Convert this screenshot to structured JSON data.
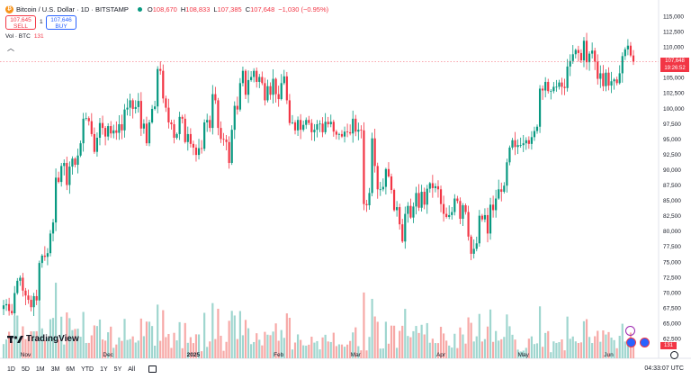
{
  "header": {
    "title": "Bitcoin / U.S. Dollar · 1D · BITSTAMP",
    "ohlc": [
      {
        "k": "O",
        "v": "108,670"
      },
      {
        "k": "H",
        "v": "108,833"
      },
      {
        "k": "L",
        "v": "107,385"
      },
      {
        "k": "C",
        "v": "107,648"
      },
      {
        "k": "",
        "v": "−1,030 (−0.95%)"
      }
    ]
  },
  "trade": {
    "sell_price": "107,645",
    "sell_label": "SELL",
    "spread": "1",
    "buy_price": "107,646",
    "buy_label": "BUY"
  },
  "volume_legend": {
    "label": "Vol · BTC",
    "value": "131"
  },
  "price_tag": {
    "price": "107,648",
    "countdown": "19:26:52"
  },
  "volume_tag": "131",
  "logo": "TradingView",
  "timeframes": [
    "1D",
    "5D",
    "1M",
    "3M",
    "6M",
    "YTD",
    "1Y",
    "5Y",
    "All"
  ],
  "clock": "04:33:07 UTC",
  "colors": {
    "up": "#089981",
    "down": "#f23645",
    "up_vol": "#9fd6cf",
    "down_vol": "#f7a9a7"
  },
  "icons": [
    "bitcoin-icon",
    "live-dot-icon",
    "collapse-chevron-icon",
    "date-range-icon",
    "settings-icon",
    "event-icon",
    "flag-icon"
  ],
  "chart_data": {
    "type": "candlestick",
    "title": "Bitcoin / U.S. Dollar · 1D · BITSTAMP",
    "yticks": [
      "115,000",
      "112,500",
      "110,000",
      "107,500",
      "105,000",
      "102,500",
      "100,000",
      "97,500",
      "95,000",
      "92,500",
      "90,000",
      "87,500",
      "85,000",
      "82,500",
      "80,000",
      "77,500",
      "75,000",
      "72,500",
      "70,000",
      "67,500",
      "65,000",
      "62,500"
    ],
    "ylim": [
      61000,
      116000
    ],
    "xticks": [
      "Nov",
      "Dec",
      "2025",
      "Feb",
      "Mar",
      "Apr",
      "May",
      "Jun"
    ],
    "x_start": "2024-10-24",
    "x_end": "2025-06-19",
    "closes": [
      67900,
      68100,
      67000,
      66600,
      69900,
      71900,
      72400,
      70300,
      69500,
      68800,
      67600,
      69400,
      68700,
      74800,
      76000,
      75800,
      76400,
      79600,
      81400,
      88700,
      88000,
      90600,
      91100,
      87500,
      90500,
      91800,
      90800,
      92300,
      94300,
      98300,
      98400,
      97900,
      95800,
      92900,
      95200,
      97600,
      96800,
      95400,
      97100,
      95900,
      96400,
      96000,
      97400,
      96400,
      99800,
      100100,
      101300,
      99900,
      100200,
      101200,
      96700,
      97500,
      94300,
      97700,
      99900,
      100300,
      106400,
      106100,
      101600,
      100100,
      97700,
      97400,
      95200,
      95800,
      98600,
      98300,
      94500,
      95800,
      94200,
      93600,
      92400,
      93500,
      93400,
      97700,
      98100,
      96800,
      102300,
      101300,
      96800,
      95000,
      94900,
      94500,
      91100,
      96500,
      100400,
      99800,
      104100,
      106100,
      102200,
      104600,
      105100,
      106100,
      104300,
      105100,
      104100,
      101300,
      103600,
      102200,
      104800,
      102300,
      101500,
      104100,
      105200,
      101300,
      97600,
      97700,
      96400,
      98100,
      96500,
      97300,
      98100,
      97600,
      96100,
      96500,
      97400,
      97500,
      96100,
      97800,
      97400,
      97800,
      96200,
      95700,
      95800,
      95400,
      96200,
      96100,
      95900,
      98300,
      96200,
      96500,
      96400,
      84400,
      84200,
      86200,
      95100,
      90600,
      86800,
      86800,
      87200,
      90100,
      88900,
      86700,
      83400,
      83900,
      81100,
      78300,
      82800,
      84100,
      82200,
      84000,
      86200,
      83800,
      86400,
      84300,
      86900,
      87800,
      87000,
      87300,
      86800,
      84400,
      82800,
      82300,
      82600,
      83100,
      85300,
      84900,
      82000,
      84200,
      83100,
      79100,
      76300,
      77100,
      78000,
      82500,
      81900,
      82600,
      79600,
      84300,
      83400,
      85300,
      86800,
      86400,
      87400,
      91200,
      93600,
      94800,
      93700,
      94000,
      94000,
      94300,
      94800,
      94200,
      95300,
      96300,
      97000,
      103200,
      102900,
      104300,
      102800,
      102800,
      103500,
      103500,
      104200,
      103500,
      103300,
      106800,
      107700,
      108800,
      109500,
      109000,
      107800,
      111000,
      107500,
      108900,
      109400,
      107600,
      104800,
      105700,
      103600,
      105800,
      103700,
      104400,
      104700,
      104100,
      105700,
      108500,
      109600,
      110200,
      108600,
      107600
    ],
    "volume_range": [
      0,
      1
    ]
  }
}
